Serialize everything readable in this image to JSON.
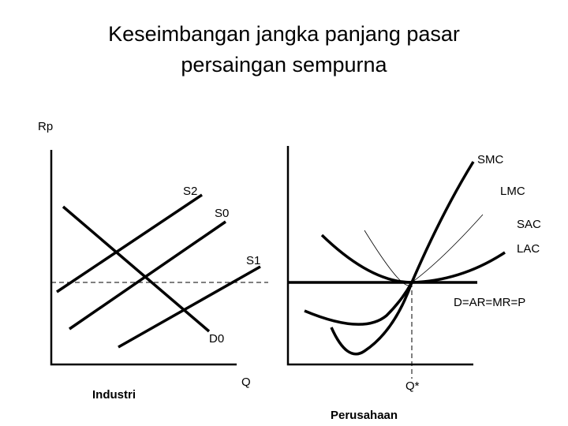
{
  "title": {
    "line1": "Keseimbangan jangka panjang pasar",
    "line2": "persaingan sempurna"
  },
  "labels": {
    "rp": "Rp",
    "smc": "SMC",
    "s2": "S2",
    "lmc": "LMC",
    "s0": "S0",
    "sac": "SAC",
    "lac": "LAC",
    "s1": "S1",
    "demand": "D=AR=MR=P",
    "d0": "D0",
    "q": "Q",
    "q_star": "Q*"
  },
  "panels": {
    "left": "Industri",
    "right": "Perusahaan"
  }
}
